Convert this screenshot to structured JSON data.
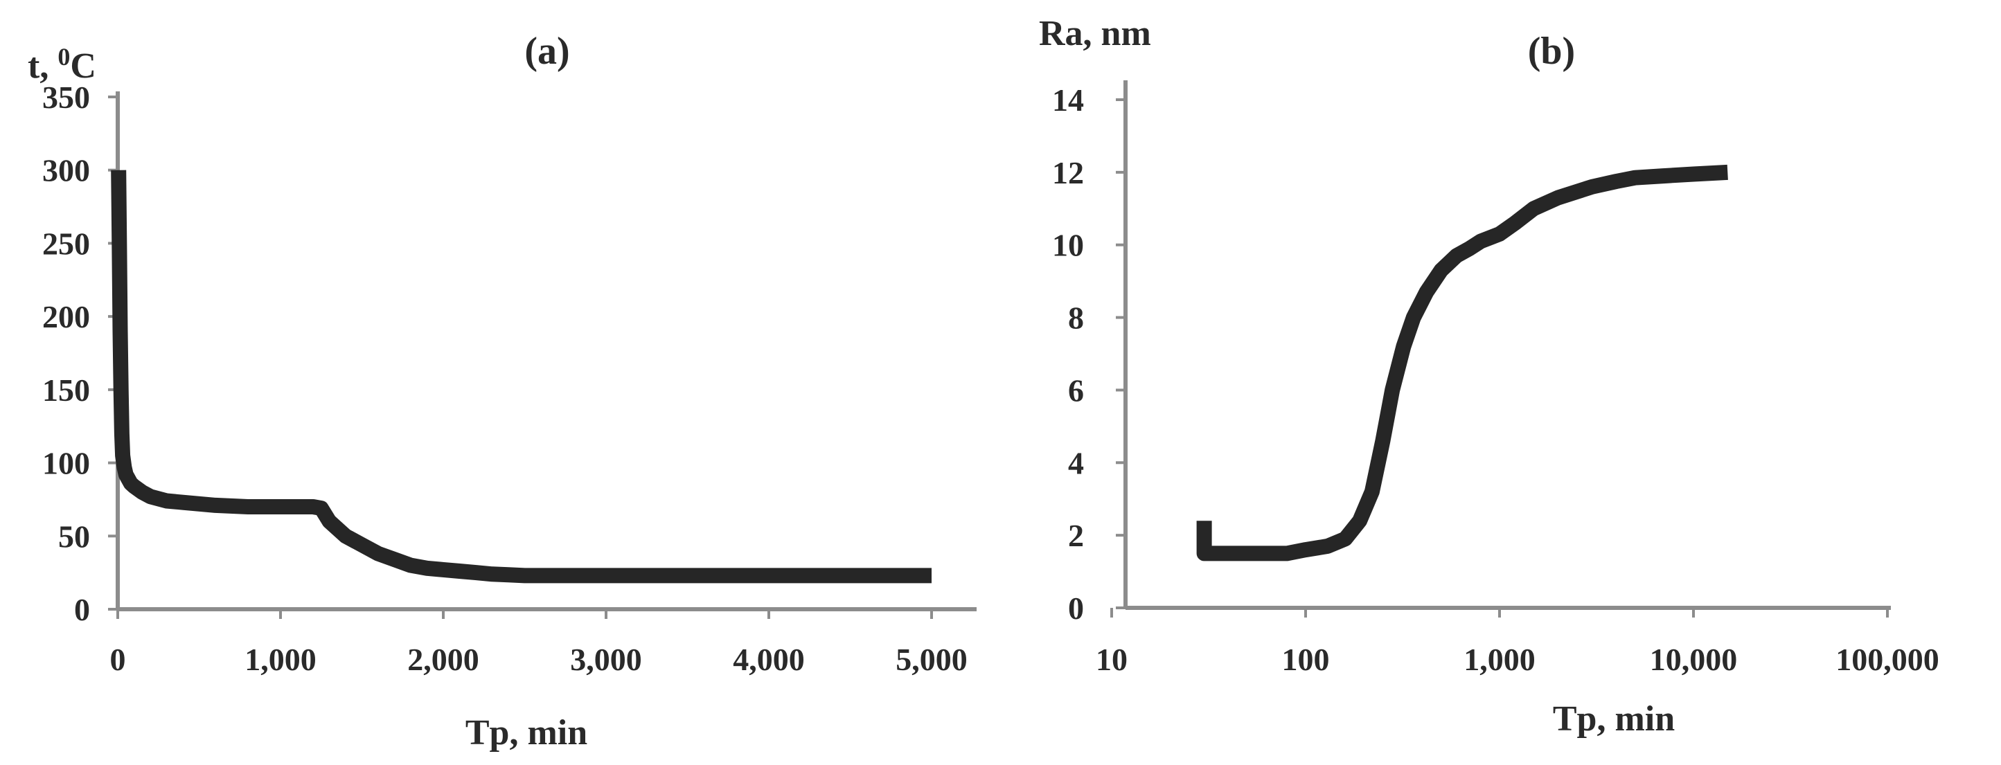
{
  "colors": {
    "axis": "#8c8c8c",
    "line": "#262626",
    "text": "#2a2a2a"
  },
  "chart_data": [
    {
      "type": "line",
      "panel_label": "(a)",
      "xlabel": "Tp, min",
      "ylabel": "t, ",
      "ylabel_sup": "0",
      "ylabel_unit": "C",
      "xlim": [
        0,
        5000
      ],
      "ylim": [
        0,
        350
      ],
      "x_scale": "linear",
      "xticks": [
        0,
        1000,
        2000,
        3000,
        4000,
        5000
      ],
      "xtick_labels": [
        "0",
        "1,000",
        "2,000",
        "3,000",
        "4,000",
        "5,000"
      ],
      "yticks": [
        0,
        50,
        100,
        150,
        200,
        250,
        300,
        350
      ],
      "ytick_labels": [
        "0",
        "50",
        "100",
        "150",
        "200",
        "250",
        "300",
        "350"
      ],
      "grid": false,
      "series": [
        {
          "x": [
            5,
            10,
            15,
            20,
            25,
            30,
            40,
            50,
            60,
            80,
            100,
            150,
            200,
            300,
            400,
            600,
            800,
            1000,
            1200,
            1250,
            1300,
            1400,
            1500,
            1600,
            1700,
            1800,
            1900,
            2000,
            2100,
            2200,
            2300,
            2400,
            2500,
            3000,
            3500,
            4000,
            4500,
            5000
          ],
          "y": [
            300,
            250,
            190,
            150,
            120,
            105,
            97,
            92,
            90,
            86,
            84,
            80,
            77,
            74,
            73,
            71,
            70,
            70,
            70,
            69,
            60,
            50,
            44,
            38,
            34,
            30,
            28,
            27,
            26,
            25,
            24,
            23.5,
            23,
            23,
            23,
            23,
            23,
            23
          ]
        }
      ]
    },
    {
      "type": "line",
      "panel_label": "(b)",
      "xlabel": "Tp, min",
      "ylabel": "Ra, nm",
      "xlim": [
        10,
        100000
      ],
      "ylim": [
        0,
        14
      ],
      "x_scale": "log",
      "xticks": [
        10,
        100,
        1000,
        10000,
        100000
      ],
      "xtick_labels": [
        "10",
        "100",
        "1,000",
        "10,000",
        "100,000"
      ],
      "yticks": [
        0,
        2,
        4,
        6,
        8,
        10,
        12,
        14
      ],
      "ytick_labels": [
        "0",
        "2",
        "4",
        "6",
        "8",
        "10",
        "12",
        "14"
      ],
      "grid": false,
      "series": [
        {
          "x": [
            30,
            30,
            30,
            40,
            60,
            80,
            100,
            130,
            160,
            190,
            220,
            250,
            280,
            320,
            360,
            420,
            500,
            600,
            700,
            800,
            1000,
            1200,
            1500,
            2000,
            3000,
            4000,
            5000,
            7000,
            10000,
            15000
          ],
          "y": [
            2.4,
            1.5,
            1.5,
            1.5,
            1.5,
            1.5,
            1.6,
            1.7,
            1.9,
            2.4,
            3.2,
            4.6,
            6.0,
            7.2,
            8.0,
            8.7,
            9.3,
            9.7,
            9.9,
            10.1,
            10.3,
            10.6,
            11.0,
            11.3,
            11.6,
            11.75,
            11.85,
            11.9,
            11.95,
            12.0
          ]
        }
      ]
    }
  ]
}
